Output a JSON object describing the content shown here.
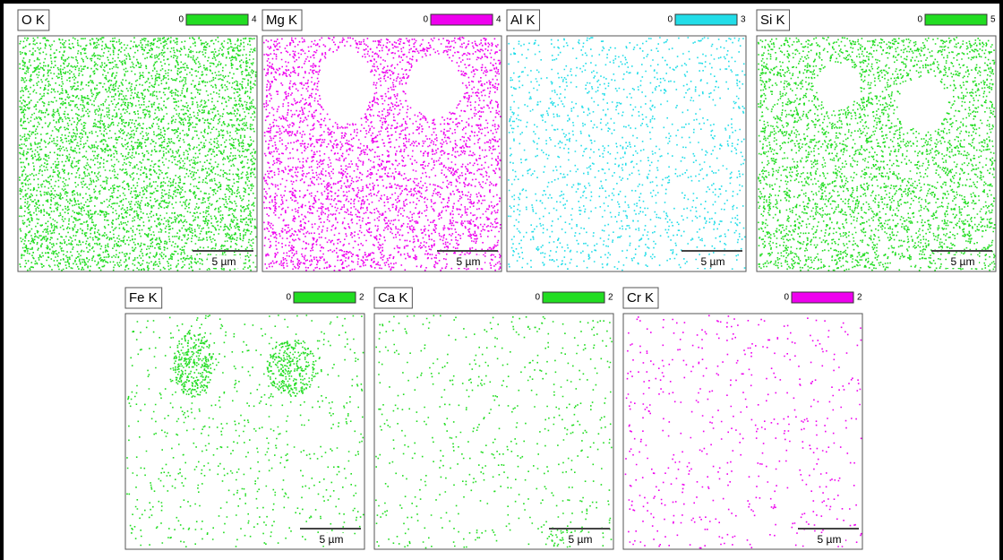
{
  "panels": [
    {
      "label": "O K",
      "min": 0,
      "max": 4,
      "color": "#22dd22",
      "scale_bar": "5 µm"
    },
    {
      "label": "Mg K",
      "min": 0,
      "max": 4,
      "color": "#ee00ee",
      "scale_bar": "5 µm"
    },
    {
      "label": "Al K",
      "min": 0,
      "max": 3,
      "color": "#22dde8",
      "scale_bar": "5 µm"
    },
    {
      "label": "Si K",
      "min": 0,
      "max": 5,
      "color": "#22dd22",
      "scale_bar": "5 µm"
    },
    {
      "label": "Fe K",
      "min": 0,
      "max": 2,
      "color": "#22dd22",
      "scale_bar": "5 µm"
    },
    {
      "label": "Ca K",
      "min": 0,
      "max": 2,
      "color": "#22dd22",
      "scale_bar": "5 µm"
    },
    {
      "label": "Cr K",
      "min": 0,
      "max": 2,
      "color": "#ee00ee",
      "scale_bar": "5 µm"
    }
  ]
}
